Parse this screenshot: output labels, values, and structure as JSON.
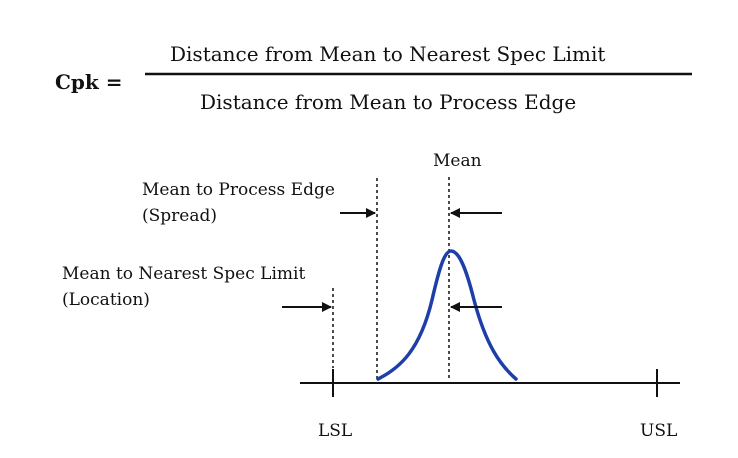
{
  "formula": {
    "label": "Cpk =",
    "numerator": "Distance from Mean to Nearest Spec Limit",
    "denominator": "Distance from Mean to Process Edge"
  },
  "diagram": {
    "mean_label": "Mean",
    "spread": {
      "line1": "Mean to Process Edge",
      "line2": "(Spread)"
    },
    "location": {
      "line1": "Mean to Nearest Spec Limit",
      "line2": "(Location)"
    },
    "lsl_label": "LSL",
    "usl_label": "USL",
    "curve_color": "#1f3fa8"
  }
}
